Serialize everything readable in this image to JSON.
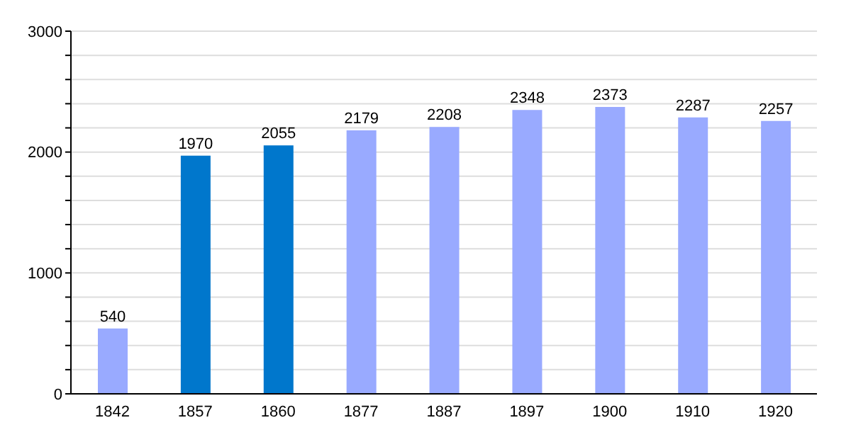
{
  "chart_data": {
    "type": "bar",
    "categories": [
      "1842",
      "1857",
      "1860",
      "1877",
      "1887",
      "1897",
      "1900",
      "1910",
      "1920"
    ],
    "values": [
      540,
      1970,
      2055,
      2179,
      2208,
      2348,
      2373,
      2287,
      2257
    ],
    "colors": [
      "#99aaff",
      "#0077cc",
      "#0077cc",
      "#99aaff",
      "#99aaff",
      "#99aaff",
      "#99aaff",
      "#99aaff",
      "#99aaff"
    ],
    "ylim": [
      0,
      3000
    ],
    "yticks": [
      0,
      {
        "value": 200,
        "label": null
      },
      {
        "value": 400,
        "label": null
      },
      {
        "value": 600,
        "label": null
      },
      {
        "value": 800,
        "label": null
      },
      1000,
      {
        "value": 1200,
        "label": null
      },
      {
        "value": 1400,
        "label": null
      },
      {
        "value": 1600,
        "label": null
      },
      {
        "value": 1800,
        "label": null
      },
      2000,
      {
        "value": 2200,
        "label": null
      },
      {
        "value": 2400,
        "label": null
      },
      {
        "value": 2600,
        "label": null
      },
      {
        "value": 2800,
        "label": null
      },
      3000
    ],
    "grid": "y",
    "data_labels": true
  }
}
